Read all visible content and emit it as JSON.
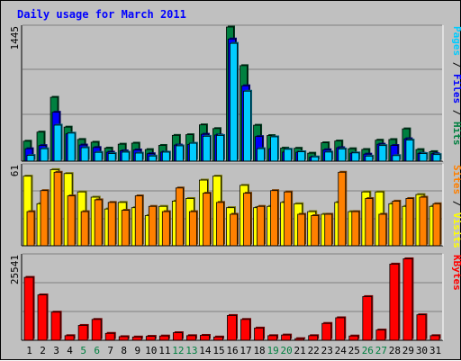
{
  "chart_data": {
    "type": "bar",
    "title": "Daily usage for March 2011",
    "categories": [
      "1",
      "2",
      "3",
      "4",
      "5",
      "6",
      "7",
      "8",
      "9",
      "10",
      "11",
      "12",
      "13",
      "14",
      "15",
      "16",
      "17",
      "18",
      "19",
      "20",
      "21",
      "22",
      "23",
      "24",
      "25",
      "26",
      "27",
      "28",
      "29",
      "30",
      "31"
    ],
    "weekend_days": [
      "5",
      "6",
      "12",
      "13",
      "19",
      "20",
      "26",
      "27"
    ],
    "panels": [
      {
        "id": "hits-files-pages",
        "max_label": "1445",
        "ymax": 1445,
        "legend": [
          {
            "text": "Pages",
            "color": "#00ccff"
          },
          {
            "text": " / ",
            "color": "#000000"
          },
          {
            "text": "Files",
            "color": "#0000ff"
          },
          {
            "text": " / ",
            "color": "#000000"
          },
          {
            "text": "Hits",
            "color": "#008040"
          }
        ],
        "series": [
          {
            "name": "Hits",
            "color": "#008040",
            "values": [
              215,
              313,
              688,
              367,
              234,
              204,
              141,
              183,
              194,
              125,
              170,
              278,
              285,
              391,
              351,
              1445,
              1029,
              387,
              276,
              141,
              139,
              86,
              198,
              217,
              134,
              126,
              226,
              233,
              348,
              125,
              103
            ]
          },
          {
            "name": "Files",
            "color": "#0000ff",
            "values": [
              134,
              168,
              527,
              294,
              174,
              147,
              97,
              111,
              121,
              80,
              98,
              174,
              181,
              290,
              282,
              1316,
              812,
              265,
              134,
              98,
              96,
              43,
              123,
              145,
              86,
              76,
              183,
              169,
              241,
              85,
              80
            ]
          },
          {
            "name": "Pages",
            "color": "#00ccff",
            "values": [
              62,
              134,
              388,
              302,
              145,
              95,
              82,
              97,
              87,
              55,
              97,
              165,
              193,
              268,
              277,
              1269,
              754,
              135,
              262,
              128,
              101,
              46,
              98,
              131,
              89,
              54,
              168,
              60,
              227,
              82,
              71
            ]
          }
        ]
      },
      {
        "id": "visits-sites",
        "max_label": "61",
        "ymax": 61,
        "legend": [
          {
            "text": "Sites",
            "color": "#ff8000"
          },
          {
            "text": " / ",
            "color": "#000000"
          },
          {
            "text": "Visits",
            "color": "#ffff00"
          }
        ],
        "series": [
          {
            "name": "Visits",
            "color": "#ffff00",
            "values": [
              53,
              32,
              58,
              55,
              41,
              37,
              28,
              33,
              29,
              23,
              30,
              34,
              36,
              50,
              53,
              29,
              46,
              29,
              30,
              33,
              32,
              26,
              24,
              33,
              26,
              41,
              41,
              32,
              30,
              39,
              30
            ]
          },
          {
            "name": "Sites",
            "color": "#ff8000",
            "values": [
              26,
              42,
              56,
              38,
              26,
              35,
              33,
              27,
              38,
              30,
              26,
              44,
              26,
              40,
              33,
              24,
              40,
              30,
              42,
              41,
              24,
              23,
              24,
              56,
              26,
              36,
              24,
              34,
              36,
              37,
              32
            ]
          }
        ]
      },
      {
        "id": "kbytes",
        "max_label": "25541",
        "ymax": 25541,
        "legend": [
          {
            "text": "KBytes",
            "color": "#ff0000"
          }
        ],
        "series": [
          {
            "name": "KBytes",
            "color": "#ff0000",
            "values": [
              19000,
              13700,
              8500,
              1400,
              4500,
              6300,
              2100,
              1100,
              1000,
              1200,
              1300,
              2300,
              1400,
              1500,
              1000,
              7500,
              6300,
              3700,
              1400,
              1600,
              500,
              1400,
              5100,
              6800,
              1300,
              13200,
              3100,
              23000,
              24600,
              7700,
              1400
            ]
          }
        ]
      }
    ]
  }
}
